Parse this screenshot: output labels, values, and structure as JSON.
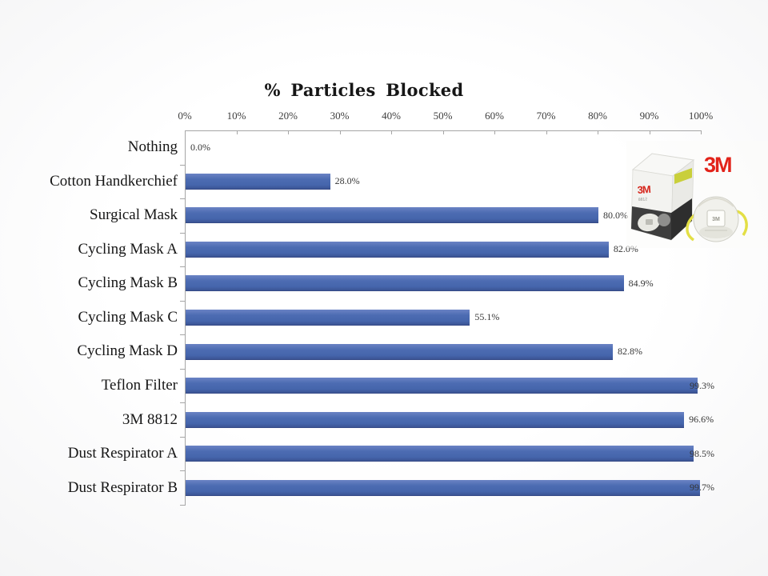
{
  "chart_data": {
    "type": "bar",
    "orientation": "horizontal",
    "title": "% Particles Blocked",
    "categories": [
      "Nothing",
      "Cotton Handkerchief",
      "Surgical Mask",
      "Cycling Mask A",
      "Cycling Mask B",
      "Cycling Mask C",
      "Cycling Mask D",
      "Teflon Filter",
      "3M 8812",
      "Dust Respirator A",
      "Dust Respirator B"
    ],
    "values": [
      0.0,
      28.0,
      80.0,
      82.0,
      84.9,
      55.1,
      82.8,
      99.3,
      96.6,
      98.5,
      99.7
    ],
    "data_labels": [
      "0.0%",
      "28.0%",
      "80.0%",
      "82.0%",
      "84.9%",
      "55.1%",
      "82.8%",
      "99.3%",
      "96.6%",
      "98.5%",
      "99.7%"
    ],
    "x_ticks": [
      "0%",
      "10%",
      "20%",
      "30%",
      "40%",
      "50%",
      "60%",
      "70%",
      "80%",
      "90%",
      "100%"
    ],
    "xlim": [
      0,
      100
    ],
    "bar_color": "#4a69ae",
    "axis_color": "#a6a6a6",
    "grid": false,
    "legend": false
  },
  "image": {
    "brand_logo": "3M",
    "box_logo": "3M",
    "box_model": "8812",
    "mask_logo": "3M"
  }
}
